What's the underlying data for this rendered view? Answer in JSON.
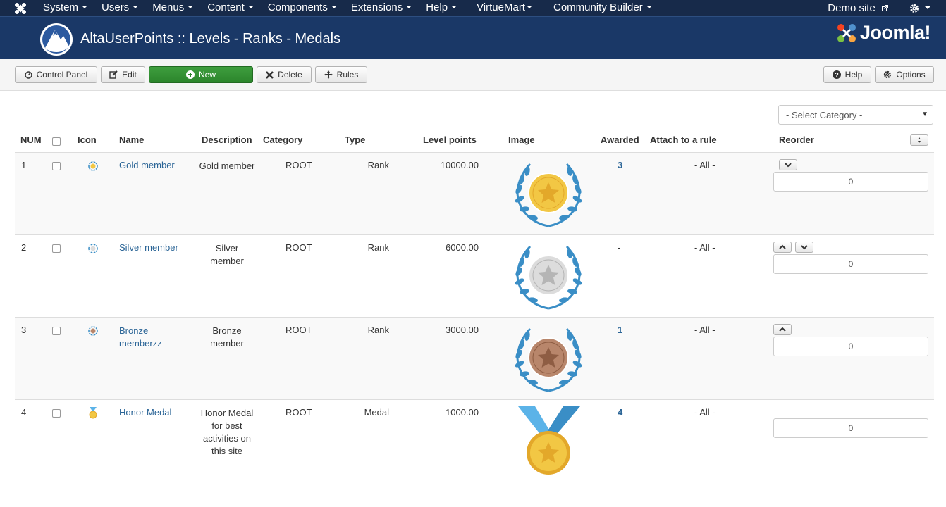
{
  "navbar": {
    "menu": [
      "System",
      "Users",
      "Menus",
      "Content",
      "Components",
      "Extensions",
      "Help",
      "VirtueMart",
      "Community Builder"
    ],
    "demo_site": "Demo site"
  },
  "header": {
    "title": "AltaUserPoints :: Levels - Ranks - Medals",
    "brand": "Joomla!"
  },
  "toolbar": {
    "control_panel": "Control Panel",
    "edit": "Edit",
    "new": "New",
    "delete": "Delete",
    "rules": "Rules",
    "help": "Help",
    "options": "Options"
  },
  "filter": {
    "category_placeholder": "- Select Category -"
  },
  "table": {
    "headers": {
      "num": "NUM",
      "icon": "Icon",
      "name": "Name",
      "description": "Description",
      "category": "Category",
      "type": "Type",
      "level_points": "Level points",
      "image": "Image",
      "awarded": "Awarded",
      "attach": "Attach to a rule",
      "reorder": "Reorder"
    },
    "rows": [
      {
        "num": "1",
        "name": "Gold member",
        "description": "Gold member",
        "category": "ROOT",
        "type": "Rank",
        "points": "10000.00",
        "awarded": "3",
        "attach": "- All -",
        "order": "0",
        "medal_color": "#f2c744",
        "medal_inner": "#e3a82a"
      },
      {
        "num": "2",
        "name": "Silver member",
        "description": "Silver member",
        "category": "ROOT",
        "type": "Rank",
        "points": "6000.00",
        "awarded": "-",
        "attach": "- All -",
        "order": "0",
        "medal_color": "#dcdcdc",
        "medal_inner": "#b5b5b5"
      },
      {
        "num": "3",
        "name": "Bronze memberzz",
        "description": "Bronze member",
        "category": "ROOT",
        "type": "Rank",
        "points": "3000.00",
        "awarded": "1",
        "attach": "- All -",
        "order": "0",
        "medal_color": "#b8866b",
        "medal_inner": "#8e5d43"
      },
      {
        "num": "4",
        "name": "Honor Medal",
        "description": "Honor Medal for best activities on this site",
        "category": "ROOT",
        "type": "Medal",
        "points": "1000.00",
        "awarded": "4",
        "attach": "- All -",
        "order": "0",
        "medal_color": "#f2c744",
        "medal_inner": "#e3a82a"
      }
    ]
  },
  "colors": {
    "navbar": "#172a4a",
    "header": "#1a3867",
    "link": "#2a6496",
    "laurel": "#3a8ec6",
    "new_button": "#2f8a2f"
  }
}
